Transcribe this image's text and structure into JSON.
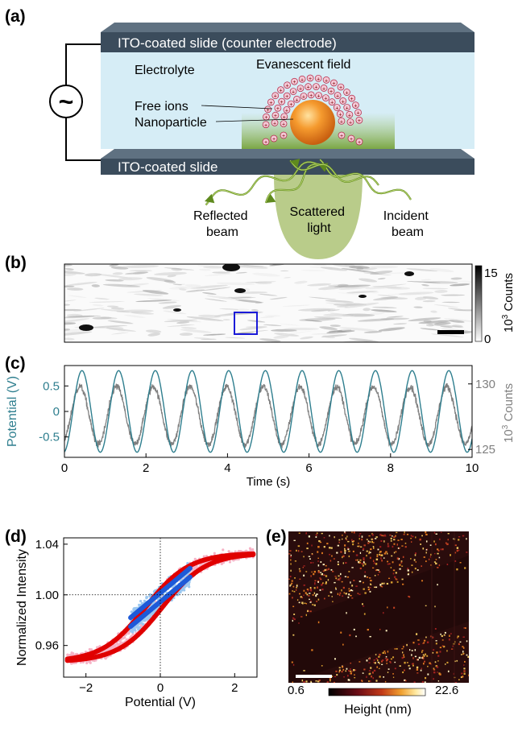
{
  "panels": {
    "a": "(a)",
    "b": "(b)",
    "c": "(c)",
    "d": "(d)",
    "e": "(e)"
  },
  "schematic": {
    "top_slide": "ITO-coated slide (counter electrode)",
    "bottom_slide": "ITO-coated slide",
    "electrolyte": "Electrolyte",
    "evanescent": "Evanescent field",
    "free_ions": "Free ions",
    "nanoparticle": "Nanoparticle",
    "source_symbol": "~",
    "reflected_1": "Reflected",
    "reflected_2": "beam",
    "scattered_1": "Scattered",
    "scattered_2": "light",
    "incident_1": "Incident",
    "incident_2": "beam"
  },
  "image_b": {
    "colorbar_max": "15",
    "colorbar_min": "0",
    "colorbar_label_base": "10",
    "colorbar_label_exp": "3",
    "colorbar_label_rest": " Counts"
  },
  "chart_data": [
    {
      "panel": "c",
      "type": "line",
      "xlabel": "Time (s)",
      "ylabel": "Potential (V)",
      "y2label_base": "10",
      "y2label_exp": "3",
      "y2label_rest": " Counts",
      "xlim": [
        0,
        10
      ],
      "ylim": [
        -0.9,
        0.9
      ],
      "y2lim": [
        124.4,
        131.4
      ],
      "xticks": [
        "0",
        "2",
        "4",
        "6",
        "8",
        "10"
      ],
      "yticks": [
        "0.5",
        "0",
        "-0.5"
      ],
      "y2ticks": [
        "130",
        "125"
      ],
      "series": [
        {
          "role": "potential",
          "amplitude": 0.8,
          "period": 0.9,
          "phase": 0.43,
          "color": "#2e7e8e"
        },
        {
          "role": "intensity",
          "mean": 127.6,
          "amplitude": 2.2,
          "period": 0.9,
          "phase": 0.38,
          "color": "#808080"
        }
      ]
    },
    {
      "panel": "d",
      "type": "scatter",
      "xlabel": "Potential (V)",
      "ylabel": "Normalized Intensity",
      "xlim": [
        -2.6,
        2.6
      ],
      "ylim": [
        0.935,
        1.045
      ],
      "xticks": [
        "−2",
        "0",
        "2"
      ],
      "yticks": [
        "1.04",
        "1.00",
        "0.96"
      ],
      "series": [
        {
          "role": "large-range-raw",
          "color": "#f6b3c6",
          "xrange": [
            -2.5,
            2.5
          ]
        },
        {
          "role": "large-range-avg",
          "color": "#e00000",
          "xrange": [
            -2.5,
            2.5
          ],
          "ymin": 0.947,
          "ymax": 1.033
        },
        {
          "role": "small-range-raw",
          "color": "#9cc8f0",
          "xrange": [
            -0.8,
            0.8
          ]
        },
        {
          "role": "small-range-avg",
          "color": "#1e5ad8",
          "xrange": [
            -0.8,
            0.8
          ],
          "ymin": 0.979,
          "ymax": 1.018
        }
      ]
    }
  ],
  "image_e": {
    "colorbar_min": "0.6",
    "colorbar_max": "22.6",
    "colorbar_label": "Height (nm)"
  }
}
